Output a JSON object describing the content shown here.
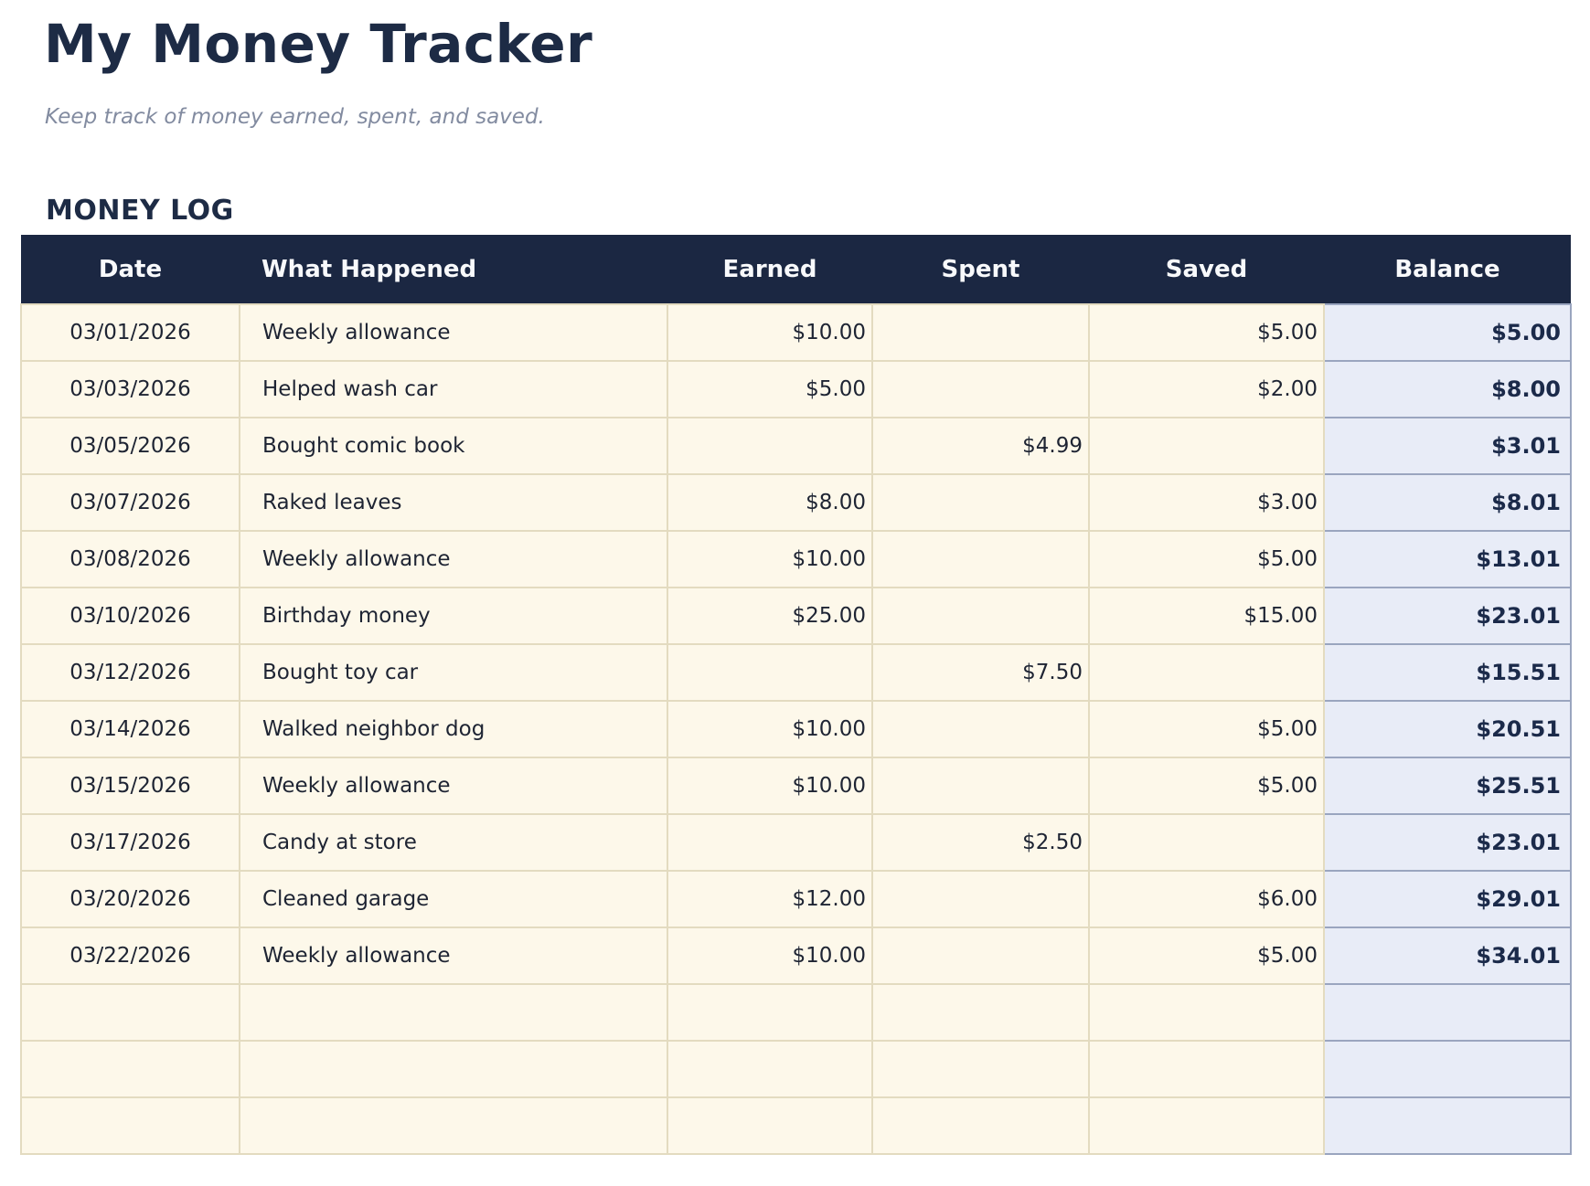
{
  "header": {
    "title": "My Money Tracker",
    "subtitle": "Keep track of money earned, spent, and saved."
  },
  "section": {
    "label": "MONEY LOG"
  },
  "table": {
    "columns": [
      "Date",
      "What Happened",
      "Earned",
      "Spent",
      "Saved",
      "Balance"
    ],
    "rows": [
      {
        "date": "03/01/2026",
        "description": "Weekly allowance",
        "earned": "$10.00",
        "spent": "",
        "saved": "$5.00",
        "balance": "$5.00"
      },
      {
        "date": "03/03/2026",
        "description": "Helped wash car",
        "earned": "$5.00",
        "spent": "",
        "saved": "$2.00",
        "balance": "$8.00"
      },
      {
        "date": "03/05/2026",
        "description": "Bought comic book",
        "earned": "",
        "spent": "$4.99",
        "saved": "",
        "balance": "$3.01"
      },
      {
        "date": "03/07/2026",
        "description": "Raked leaves",
        "earned": "$8.00",
        "spent": "",
        "saved": "$3.00",
        "balance": "$8.01"
      },
      {
        "date": "03/08/2026",
        "description": "Weekly allowance",
        "earned": "$10.00",
        "spent": "",
        "saved": "$5.00",
        "balance": "$13.01"
      },
      {
        "date": "03/10/2026",
        "description": "Birthday money",
        "earned": "$25.00",
        "spent": "",
        "saved": "$15.00",
        "balance": "$23.01"
      },
      {
        "date": "03/12/2026",
        "description": "Bought toy car",
        "earned": "",
        "spent": "$7.50",
        "saved": "",
        "balance": "$15.51"
      },
      {
        "date": "03/14/2026",
        "description": "Walked neighbor dog",
        "earned": "$10.00",
        "spent": "",
        "saved": "$5.00",
        "balance": "$20.51"
      },
      {
        "date": "03/15/2026",
        "description": "Weekly allowance",
        "earned": "$10.00",
        "spent": "",
        "saved": "$5.00",
        "balance": "$25.51"
      },
      {
        "date": "03/17/2026",
        "description": "Candy at store",
        "earned": "",
        "spent": "$2.50",
        "saved": "",
        "balance": "$23.01"
      },
      {
        "date": "03/20/2026",
        "description": "Cleaned garage",
        "earned": "$12.00",
        "spent": "",
        "saved": "$6.00",
        "balance": "$29.01"
      },
      {
        "date": "03/22/2026",
        "description": "Weekly allowance",
        "earned": "$10.00",
        "spent": "",
        "saved": "$5.00",
        "balance": "$34.01"
      },
      {
        "date": "",
        "description": "",
        "earned": "",
        "spent": "",
        "saved": "",
        "balance": ""
      },
      {
        "date": "",
        "description": "",
        "earned": "",
        "spent": "",
        "saved": "",
        "balance": ""
      },
      {
        "date": "",
        "description": "",
        "earned": "",
        "spent": "",
        "saved": "",
        "balance": ""
      }
    ]
  },
  "colors": {
    "header_bg": "#1b2742",
    "header_text": "#f8f9fb",
    "row_bg": "#fdf8ea",
    "row_border": "#e3dbc0",
    "balance_bg": "#e8ecf7",
    "balance_border": "#9aa5bf",
    "balance_text": "#1b2a4a",
    "body_text": "#1e2433",
    "title_color": "#1d2b45",
    "subtitle_color": "#828ba0"
  }
}
